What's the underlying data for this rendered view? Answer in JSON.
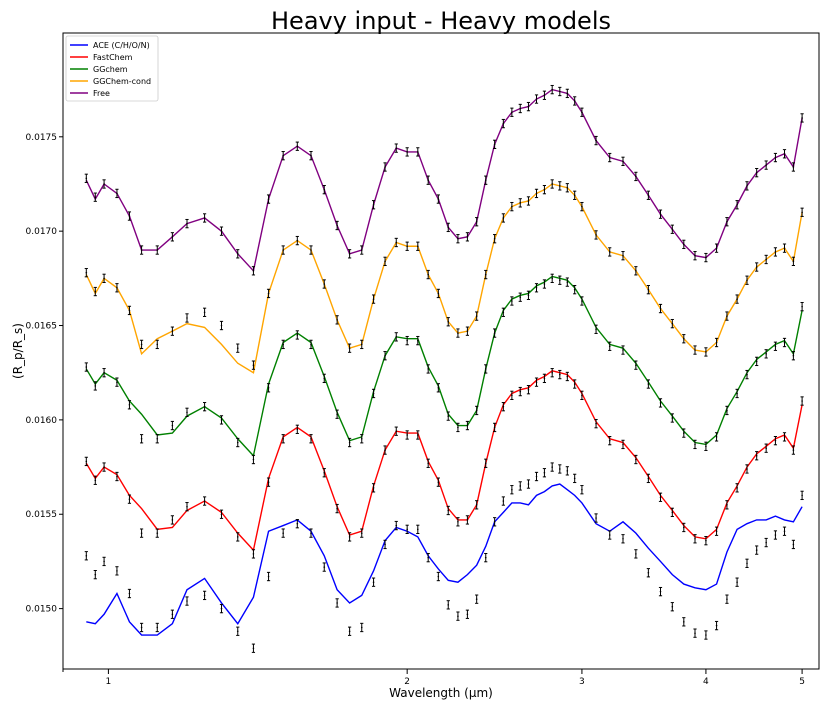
{
  "chart_data": {
    "type": "line",
    "title": "Heavy input - Heavy models",
    "xlabel": "Wavelength (μm)",
    "ylabel": "(R_p/R_s)",
    "x_scale": "log",
    "xlim": [
      0.9,
      5.2
    ],
    "ylim": [
      0.01468,
      0.01805
    ],
    "x_ticks": [
      1,
      2,
      3,
      4,
      5
    ],
    "y_ticks": [
      0.015,
      0.0155,
      0.016,
      0.0165,
      0.017,
      0.0175
    ],
    "y_tick_labels": [
      "0.0150",
      "0.0155",
      "0.0160",
      "0.0165",
      "0.0170",
      "0.0175"
    ],
    "grid": false,
    "legend_position": "top-left",
    "x": [
      0.95,
      0.97,
      0.99,
      1.02,
      1.05,
      1.08,
      1.12,
      1.16,
      1.2,
      1.25,
      1.3,
      1.35,
      1.4,
      1.45,
      1.5,
      1.55,
      1.6,
      1.65,
      1.7,
      1.75,
      1.8,
      1.85,
      1.9,
      1.95,
      2.0,
      2.05,
      2.1,
      2.15,
      2.2,
      2.25,
      2.3,
      2.35,
      2.4,
      2.45,
      2.5,
      2.55,
      2.6,
      2.65,
      2.7,
      2.75,
      2.8,
      2.85,
      2.9,
      2.95,
      3.0,
      3.1,
      3.2,
      3.3,
      3.4,
      3.5,
      3.6,
      3.7,
      3.8,
      3.9,
      4.0,
      4.1,
      4.2,
      4.3,
      4.4,
      4.5,
      4.6,
      4.7,
      4.8,
      4.9,
      5.0
    ],
    "series": [
      {
        "name": "ACE (C/H/O/N)",
        "color": "#0000ff",
        "values": [
          0.01493,
          0.01492,
          0.01497,
          0.01508,
          0.01493,
          0.01486,
          0.01486,
          0.01492,
          0.0151,
          0.01516,
          0.01503,
          0.01492,
          0.01506,
          0.01541,
          0.01544,
          0.01547,
          0.01541,
          0.01528,
          0.0151,
          0.01503,
          0.01507,
          0.0152,
          0.01536,
          0.01543,
          0.01541,
          0.01538,
          0.01528,
          0.01521,
          0.01515,
          0.01514,
          0.01518,
          0.01523,
          0.01533,
          0.01546,
          0.01551,
          0.01556,
          0.01556,
          0.01555,
          0.0156,
          0.01562,
          0.01565,
          0.01566,
          0.01563,
          0.0156,
          0.01556,
          0.01545,
          0.01541,
          0.01546,
          0.0154,
          0.01532,
          0.01525,
          0.01518,
          0.01513,
          0.01511,
          0.0151,
          0.01513,
          0.0153,
          0.01542,
          0.01545,
          0.01547,
          0.01547,
          0.01549,
          0.01547,
          0.01546,
          0.01554
        ]
      },
      {
        "name": "FastChem",
        "color": "#ff0000",
        "values": [
          0.01577,
          0.01569,
          0.01575,
          0.01571,
          0.0156,
          0.01553,
          0.01542,
          0.01543,
          0.01552,
          0.01557,
          0.01551,
          0.0154,
          0.01531,
          0.01569,
          0.01591,
          0.01596,
          0.01591,
          0.01573,
          0.01554,
          0.01539,
          0.01541,
          0.01565,
          0.01584,
          0.01594,
          0.01593,
          0.01593,
          0.01578,
          0.01568,
          0.01553,
          0.01547,
          0.01547,
          0.01555,
          0.01577,
          0.01596,
          0.01608,
          0.01614,
          0.01616,
          0.01617,
          0.01621,
          0.01623,
          0.01626,
          0.01625,
          0.01624,
          0.0162,
          0.01614,
          0.01599,
          0.0159,
          0.01588,
          0.0158,
          0.0157,
          0.0156,
          0.01552,
          0.01544,
          0.01538,
          0.01537,
          0.01542,
          0.01556,
          0.01565,
          0.01575,
          0.01582,
          0.01586,
          0.0159,
          0.01592,
          0.01585,
          0.01608
        ]
      },
      {
        "name": "GGchem",
        "color": "#008000",
        "values": [
          0.01627,
          0.01619,
          0.01625,
          0.01621,
          0.0161,
          0.01603,
          0.01592,
          0.01593,
          0.01602,
          0.01607,
          0.01601,
          0.0159,
          0.01581,
          0.01619,
          0.01641,
          0.01646,
          0.01641,
          0.01623,
          0.01604,
          0.01589,
          0.01591,
          0.01615,
          0.01634,
          0.01644,
          0.01643,
          0.01643,
          0.01628,
          0.01618,
          0.01603,
          0.01597,
          0.01597,
          0.01605,
          0.01627,
          0.01646,
          0.01658,
          0.01664,
          0.01666,
          0.01667,
          0.01671,
          0.01673,
          0.01676,
          0.01675,
          0.01674,
          0.0167,
          0.01664,
          0.01649,
          0.0164,
          0.01638,
          0.0163,
          0.0162,
          0.0161,
          0.01602,
          0.01594,
          0.01588,
          0.01587,
          0.01592,
          0.01606,
          0.01615,
          0.01625,
          0.01632,
          0.01636,
          0.0164,
          0.01642,
          0.01635,
          0.01658
        ]
      },
      {
        "name": "GGChem-cond",
        "color": "#ffa500",
        "values": [
          0.01677,
          0.01667,
          0.01675,
          0.0167,
          0.01658,
          0.01635,
          0.01643,
          0.01647,
          0.01651,
          0.01649,
          0.0164,
          0.0163,
          0.01625,
          0.01667,
          0.0169,
          0.01695,
          0.0169,
          0.01672,
          0.01653,
          0.01638,
          0.0164,
          0.01664,
          0.01684,
          0.01694,
          0.01692,
          0.01692,
          0.01677,
          0.01667,
          0.01652,
          0.01646,
          0.01647,
          0.01655,
          0.01677,
          0.01696,
          0.01707,
          0.01713,
          0.01715,
          0.01716,
          0.0172,
          0.01722,
          0.01725,
          0.01724,
          0.01723,
          0.01719,
          0.01713,
          0.01698,
          0.01689,
          0.01687,
          0.01679,
          0.01669,
          0.01659,
          0.01651,
          0.01643,
          0.01637,
          0.01636,
          0.01641,
          0.01655,
          0.01664,
          0.01674,
          0.01681,
          0.01685,
          0.01689,
          0.01691,
          0.01684,
          0.0171
        ]
      },
      {
        "name": "Free",
        "color": "#800080",
        "values": [
          0.01727,
          0.01717,
          0.01725,
          0.0172,
          0.01708,
          0.0169,
          0.0169,
          0.01697,
          0.01704,
          0.01707,
          0.017,
          0.01688,
          0.01679,
          0.01717,
          0.0174,
          0.01745,
          0.0174,
          0.01722,
          0.01703,
          0.01688,
          0.0169,
          0.01714,
          0.01734,
          0.01744,
          0.01742,
          0.01742,
          0.01727,
          0.01717,
          0.01702,
          0.01696,
          0.01697,
          0.01705,
          0.01727,
          0.01746,
          0.01757,
          0.01763,
          0.01765,
          0.01766,
          0.0177,
          0.01772,
          0.01775,
          0.01774,
          0.01773,
          0.01769,
          0.01763,
          0.01748,
          0.01739,
          0.01737,
          0.01729,
          0.01719,
          0.01709,
          0.01701,
          0.01693,
          0.01687,
          0.01686,
          0.01691,
          0.01705,
          0.01714,
          0.01724,
          0.01731,
          0.01735,
          0.01739,
          0.01741,
          0.01734,
          0.0176
        ]
      }
    ],
    "observed_points": {
      "name": "",
      "color": "#000000",
      "x": [
        0.95,
        0.97,
        0.99,
        1.02,
        1.05,
        1.08,
        1.12,
        1.16,
        1.2,
        1.25,
        1.3,
        1.35,
        1.4,
        1.45,
        1.5,
        1.55,
        1.6,
        1.65,
        1.7,
        1.75,
        1.8,
        1.85,
        1.9,
        1.95,
        2.0,
        2.05,
        2.1,
        2.15,
        2.2,
        2.25,
        2.3,
        2.35,
        2.4,
        2.45,
        2.5,
        2.55,
        2.6,
        2.65,
        2.7,
        2.75,
        2.8,
        2.85,
        2.9,
        2.95,
        3.0,
        3.1,
        3.2,
        3.3,
        3.4,
        3.5,
        3.6,
        3.7,
        3.8,
        3.9,
        4.0,
        4.1,
        4.2,
        4.3,
        4.4,
        4.5,
        4.6,
        4.7,
        4.8,
        4.9,
        5.0
      ],
      "y": [
        0.01528,
        0.01518,
        0.01525,
        0.0152,
        0.01508,
        0.0149,
        0.0149,
        0.01497,
        0.01504,
        0.01507,
        0.015,
        0.01488,
        0.01479,
        0.01517,
        0.0154,
        0.01545,
        0.0154,
        0.01522,
        0.01503,
        0.01488,
        0.0149,
        0.01514,
        0.01534,
        0.01544,
        0.01542,
        0.01542,
        0.01527,
        0.01517,
        0.01502,
        0.01496,
        0.01497,
        0.01505,
        0.01527,
        0.01546,
        0.01557,
        0.01563,
        0.01565,
        0.01566,
        0.0157,
        0.01572,
        0.01575,
        0.01574,
        0.01573,
        0.01569,
        0.01563,
        0.01548,
        0.01539,
        0.01537,
        0.01529,
        0.01519,
        0.01509,
        0.01501,
        0.01493,
        0.01487,
        0.01486,
        0.01491,
        0.01505,
        0.01514,
        0.01524,
        0.01531,
        0.01535,
        0.01539,
        0.01541,
        0.01534,
        0.0156
      ],
      "yerr": 2.2e-05
    }
  }
}
